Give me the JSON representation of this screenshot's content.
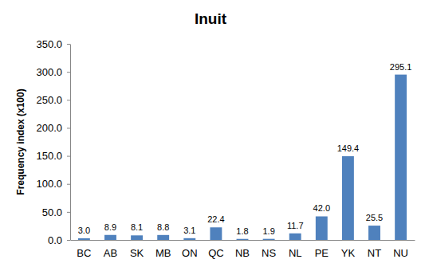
{
  "chart_data": {
    "type": "bar",
    "title": "Inuit",
    "ylabel": "Frequency index (x100)",
    "categories": [
      "BC",
      "AB",
      "SK",
      "MB",
      "ON",
      "QC",
      "NB",
      "NS",
      "NL",
      "PE",
      "YK",
      "NT",
      "NU"
    ],
    "values": [
      3.0,
      8.9,
      8.1,
      8.8,
      3.1,
      22.4,
      1.8,
      1.9,
      11.7,
      42.0,
      149.4,
      25.5,
      295.1
    ],
    "value_labels": [
      "3.0",
      "8.9",
      "8.1",
      "8.8",
      "3.1",
      "22.4",
      "1.8",
      "1.9",
      "11.7",
      "42.0",
      "149.4",
      "25.5",
      "295.1"
    ],
    "color": "#4f81bd",
    "ylim": [
      0,
      350
    ],
    "yticks": [
      {
        "value": 0,
        "label": "0.0"
      },
      {
        "value": 50,
        "label": "50.0"
      },
      {
        "value": 100,
        "label": "100.0"
      },
      {
        "value": 150,
        "label": "150.0"
      },
      {
        "value": 200,
        "label": "200.0"
      },
      {
        "value": 250,
        "label": "250.0"
      },
      {
        "value": 300,
        "label": "300.0"
      },
      {
        "value": 350,
        "label": "350.0"
      }
    ],
    "grid": false,
    "data_labels": true
  }
}
